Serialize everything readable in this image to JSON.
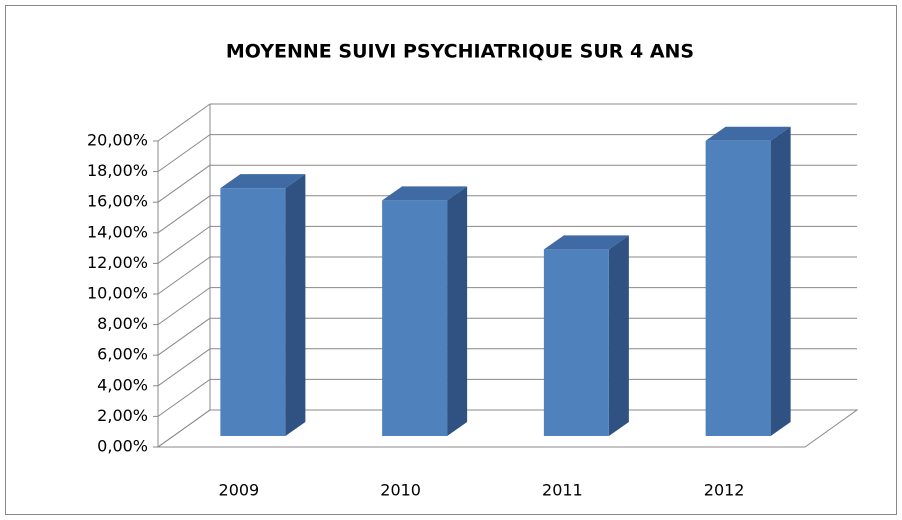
{
  "chart_data": {
    "type": "bar3d",
    "title": "MOYENNE SUIVI PSYCHIATRIQUE SUR 4 ANS",
    "categories": [
      "2009",
      "2010",
      "2011",
      "2012"
    ],
    "values": [
      16.2,
      15.4,
      12.2,
      19.3
    ],
    "color": "#4f81bd",
    "ylim": [
      0,
      20
    ],
    "yticks": [
      {
        "value": 0,
        "label": "0,00%"
      },
      {
        "value": 2,
        "label": "2,00%"
      },
      {
        "value": 4,
        "label": "4,00%"
      },
      {
        "value": 6,
        "label": "6,00%"
      },
      {
        "value": 8,
        "label": "8,00%"
      },
      {
        "value": 10,
        "label": "10,00%"
      },
      {
        "value": 12,
        "label": "12,00%"
      },
      {
        "value": 14,
        "label": "14,00%"
      },
      {
        "value": 16,
        "label": "16,00%"
      },
      {
        "value": 18,
        "label": "18,00%"
      },
      {
        "value": 20,
        "label": "20,00%"
      }
    ],
    "grid": true
  }
}
